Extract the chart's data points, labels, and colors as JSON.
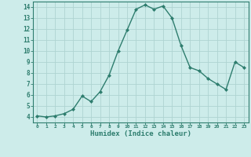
{
  "x": [
    0,
    1,
    2,
    3,
    4,
    5,
    6,
    7,
    8,
    9,
    10,
    11,
    12,
    13,
    14,
    15,
    16,
    17,
    18,
    19,
    20,
    21,
    22,
    23
  ],
  "y": [
    4.1,
    4.0,
    4.1,
    4.3,
    4.7,
    5.9,
    5.4,
    6.3,
    7.8,
    10.0,
    11.9,
    13.8,
    14.2,
    13.8,
    14.1,
    13.0,
    10.5,
    8.5,
    8.2,
    7.5,
    7.0,
    6.5,
    9.0,
    8.5
  ],
  "xlabel": "Humidex (Indice chaleur)",
  "ylim": [
    3.5,
    14.5
  ],
  "xlim": [
    -0.5,
    23.5
  ],
  "yticks": [
    4,
    5,
    6,
    7,
    8,
    9,
    10,
    11,
    12,
    13,
    14
  ],
  "xticks": [
    0,
    1,
    2,
    3,
    4,
    5,
    6,
    7,
    8,
    9,
    10,
    11,
    12,
    13,
    14,
    15,
    16,
    17,
    18,
    19,
    20,
    21,
    22,
    23
  ],
  "line_color": "#2e7d6e",
  "marker_color": "#2e7d6e",
  "bg_color": "#cdecea",
  "grid_color": "#aed4d1",
  "tick_color": "#2e7d6e",
  "spine_color": "#2e7d6e",
  "xlabel_color": "#2e7d6e"
}
